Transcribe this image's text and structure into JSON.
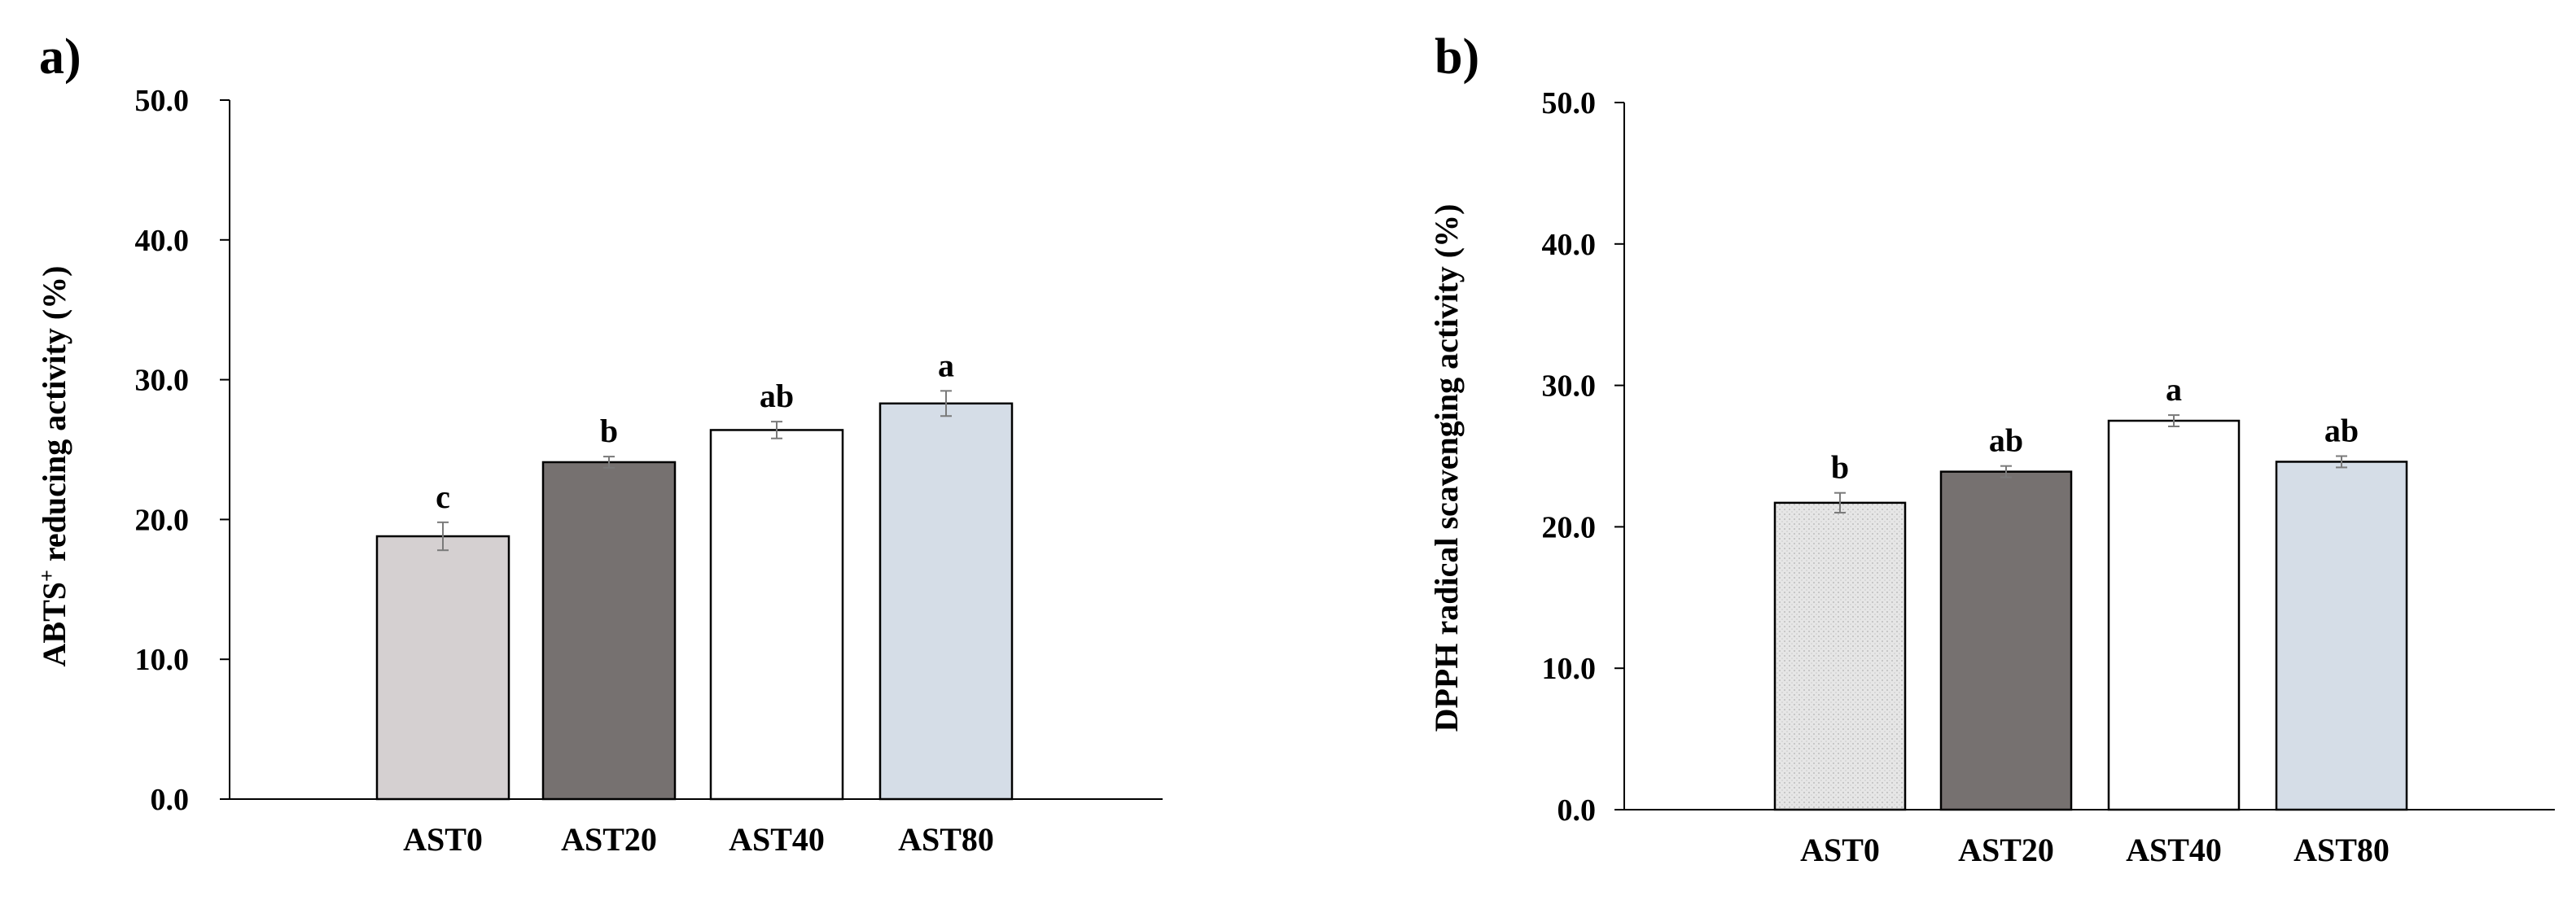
{
  "chart_data": [
    {
      "type": "bar",
      "panel_label": "a)",
      "title": "",
      "xlabel": "",
      "ylabel": "ABTS",
      "ylabel_superscript": "+",
      "ylabel_rest": " reducing activity (%)",
      "ylim": [
        0,
        50
      ],
      "yticks": [
        "0.0",
        "10.0",
        "20.0",
        "30.0",
        "40.0",
        "50.0"
      ],
      "categories": [
        "AST0",
        "AST20",
        "AST40",
        "AST80"
      ],
      "values": [
        18.8,
        24.1,
        26.4,
        28.3
      ],
      "errors": [
        1.0,
        0.4,
        0.6,
        0.9
      ],
      "significance_letters": [
        "c",
        "b",
        "ab",
        "a"
      ],
      "bar_colors": [
        "#d5d0d1",
        "#767170",
        "#ffffff",
        "#d5dde7"
      ],
      "grid": false
    },
    {
      "type": "bar",
      "panel_label": "b)",
      "title": "",
      "xlabel": "",
      "ylabel": "DPPH radical scavenging activity (%)",
      "ylim": [
        0,
        50
      ],
      "yticks": [
        "0.0",
        "10.0",
        "20.0",
        "30.0",
        "40.0",
        "50.0"
      ],
      "categories": [
        "AST0",
        "AST20",
        "AST40",
        "AST80"
      ],
      "values": [
        21.7,
        23.9,
        27.5,
        24.6
      ],
      "errors": [
        0.7,
        0.4,
        0.4,
        0.4
      ],
      "significance_letters": [
        "b",
        "ab",
        "a",
        "ab"
      ],
      "bar_colors": [
        "#e0e0e0",
        "#767170",
        "#ffffff",
        "#d5dde7"
      ],
      "grid": false
    }
  ]
}
